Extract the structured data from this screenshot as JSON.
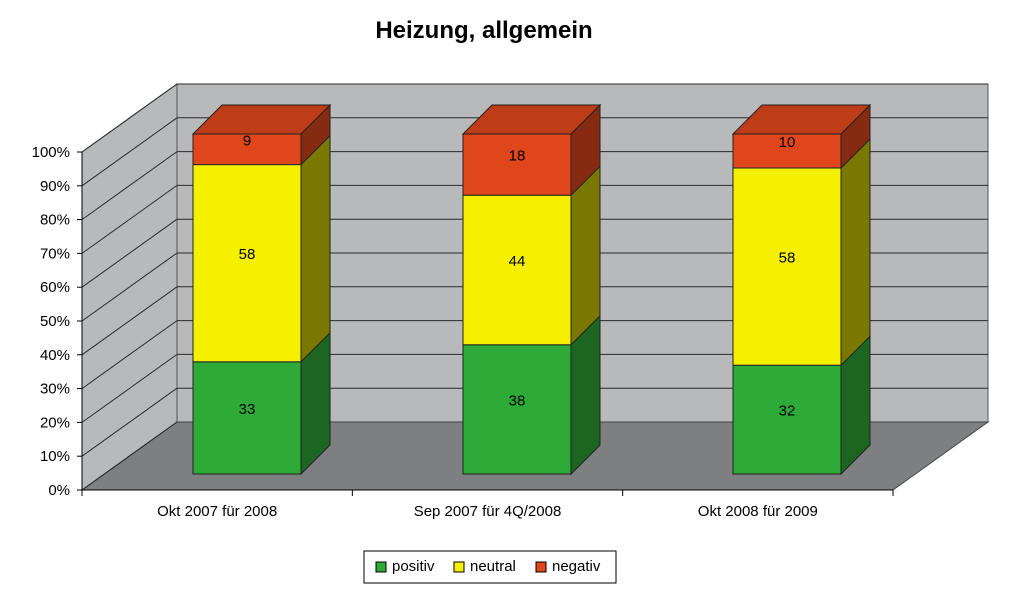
{
  "chart_data": {
    "type": "bar",
    "stacked": true,
    "percent": true,
    "three_d": true,
    "title": "Heizung, allgemein",
    "xlabel": "",
    "ylabel": "",
    "categories": [
      "Okt 2007 für 2008",
      "Sep 2007 für 4Q/2008",
      "Okt 2008 für 2009"
    ],
    "series": [
      {
        "name": "positiv",
        "values": [
          33,
          38,
          32
        ],
        "color": "#2eaa38"
      },
      {
        "name": "neutral",
        "values": [
          58,
          44,
          58
        ],
        "color": "#f5f000"
      },
      {
        "name": "negativ",
        "values": [
          9,
          18,
          10
        ],
        "color": "#e0461c"
      }
    ],
    "ylim": [
      0,
      100
    ],
    "y_ticks": [
      "0%",
      "10%",
      "20%",
      "30%",
      "40%",
      "50%",
      "60%",
      "70%",
      "80%",
      "90%",
      "100%"
    ],
    "grid": true,
    "legend_position": "bottom",
    "wall_color": "#b7b9ba",
    "floor_color": "#7d7f81"
  }
}
